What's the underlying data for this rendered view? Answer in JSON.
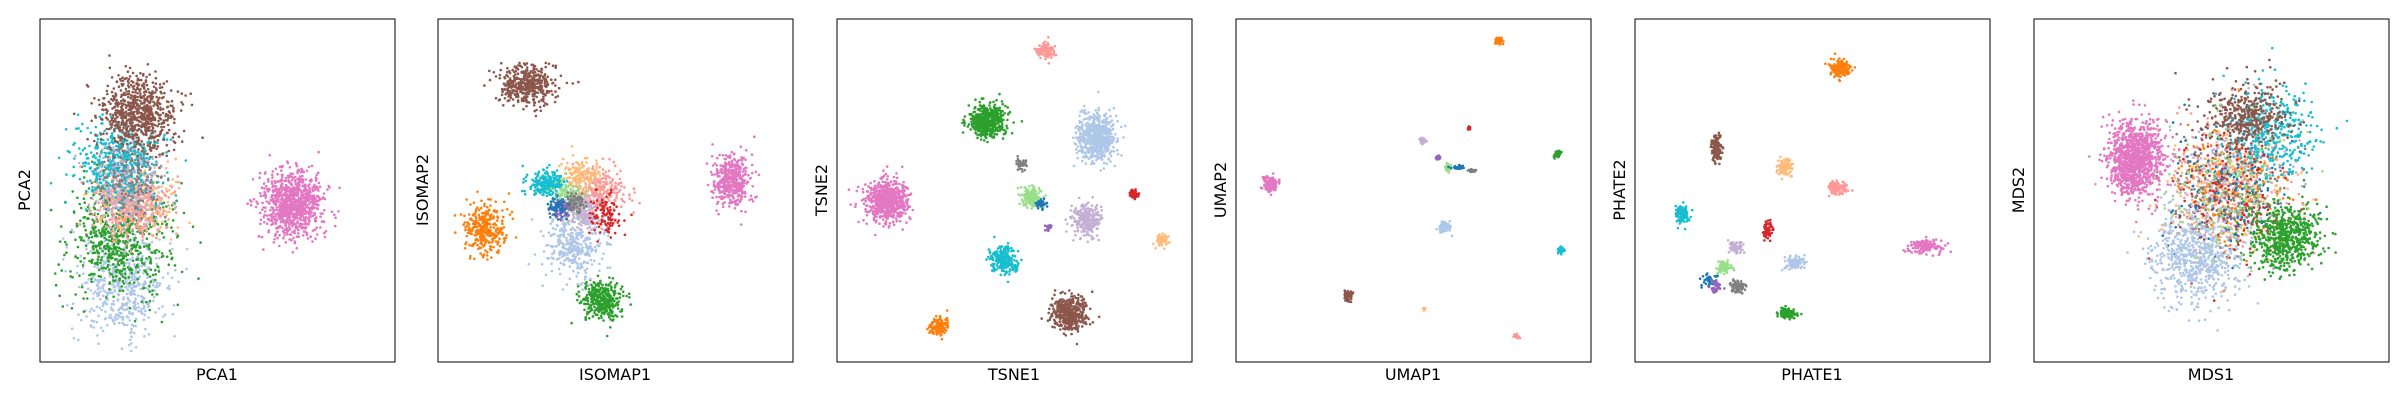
{
  "colors": {
    "blue_light": "#aec7e8",
    "orange": "#ff7f0e",
    "orange_light": "#ffbb78",
    "green": "#2ca02c",
    "green_light": "#98df8a",
    "red": "#d62728",
    "red_light": "#ff9896",
    "purple": "#9467bd",
    "purple_light": "#c5b0d5",
    "brown": "#8c564b",
    "pink": "#e377c2",
    "gray": "#7f7f7f",
    "cyan": "#17becf",
    "blue": "#1f77b4"
  },
  "chart_data": [
    {
      "type": "scatter",
      "xlabel": "PCA1",
      "ylabel": "PCA2",
      "grid": false,
      "ticks": false,
      "clusters": [
        {
          "color": "blue_light",
          "center": [
            0.22,
            0.22
          ],
          "spread": [
            0.13,
            0.16
          ],
          "n": 520
        },
        {
          "color": "green",
          "center": [
            0.21,
            0.35
          ],
          "spread": [
            0.15,
            0.17
          ],
          "n": 620
        },
        {
          "color": "orange_light",
          "center": [
            0.26,
            0.47
          ],
          "spread": [
            0.12,
            0.11
          ],
          "n": 380
        },
        {
          "color": "red_light",
          "center": [
            0.25,
            0.46
          ],
          "spread": [
            0.11,
            0.1
          ],
          "n": 300
        },
        {
          "color": "cyan",
          "center": [
            0.22,
            0.58
          ],
          "spread": [
            0.12,
            0.12
          ],
          "n": 520
        },
        {
          "color": "brown",
          "center": [
            0.27,
            0.73
          ],
          "spread": [
            0.11,
            0.11
          ],
          "n": 720
        },
        {
          "color": "purple_light",
          "center": [
            0.24,
            0.5
          ],
          "spread": [
            0.11,
            0.14
          ],
          "n": 200
        },
        {
          "color": "gray",
          "center": [
            0.24,
            0.52
          ],
          "spread": [
            0.1,
            0.12
          ],
          "n": 160
        },
        {
          "color": "pink",
          "center": [
            0.72,
            0.46
          ],
          "spread": [
            0.09,
            0.1
          ],
          "n": 900
        }
      ]
    },
    {
      "type": "scatter",
      "xlabel": "ISOMAP1",
      "ylabel": "ISOMAP2",
      "grid": false,
      "ticks": false,
      "clusters": [
        {
          "color": "brown",
          "center": [
            0.24,
            0.82
          ],
          "spread": [
            0.08,
            0.06
          ],
          "n": 420
        },
        {
          "color": "pink",
          "center": [
            0.84,
            0.53
          ],
          "spread": [
            0.05,
            0.08
          ],
          "n": 420
        },
        {
          "color": "orange",
          "center": [
            0.12,
            0.38
          ],
          "spread": [
            0.06,
            0.08
          ],
          "n": 300
        },
        {
          "color": "green",
          "center": [
            0.46,
            0.17
          ],
          "spread": [
            0.06,
            0.06
          ],
          "n": 360
        },
        {
          "color": "blue_light",
          "center": [
            0.38,
            0.33
          ],
          "spread": [
            0.08,
            0.09
          ],
          "n": 320
        },
        {
          "color": "red_light",
          "center": [
            0.45,
            0.5
          ],
          "spread": [
            0.08,
            0.08
          ],
          "n": 260
        },
        {
          "color": "cyan",
          "center": [
            0.3,
            0.52
          ],
          "spread": [
            0.05,
            0.04
          ],
          "n": 220
        },
        {
          "color": "green_light",
          "center": [
            0.37,
            0.48
          ],
          "spread": [
            0.05,
            0.05
          ],
          "n": 160
        },
        {
          "color": "purple_light",
          "center": [
            0.41,
            0.44
          ],
          "spread": [
            0.05,
            0.06
          ],
          "n": 160
        },
        {
          "color": "orange_light",
          "center": [
            0.4,
            0.55
          ],
          "spread": [
            0.06,
            0.05
          ],
          "n": 140
        },
        {
          "color": "red",
          "center": [
            0.47,
            0.42
          ],
          "spread": [
            0.05,
            0.07
          ],
          "n": 100
        },
        {
          "color": "gray",
          "center": [
            0.38,
            0.46
          ],
          "spread": [
            0.03,
            0.03
          ],
          "n": 80
        },
        {
          "color": "purple",
          "center": [
            0.34,
            0.44
          ],
          "spread": [
            0.03,
            0.03
          ],
          "n": 60
        },
        {
          "color": "blue",
          "center": [
            0.33,
            0.45
          ],
          "spread": [
            0.03,
            0.03
          ],
          "n": 60
        }
      ]
    },
    {
      "type": "scatter",
      "xlabel": "TSNE1",
      "ylabel": "TSNE2",
      "grid": false,
      "ticks": false,
      "clusters": [
        {
          "color": "pink",
          "center": [
            0.13,
            0.47
          ],
          "spread": [
            0.06,
            0.06
          ],
          "n": 700
        },
        {
          "color": "green",
          "center": [
            0.42,
            0.71
          ],
          "spread": [
            0.05,
            0.05
          ],
          "n": 500
        },
        {
          "color": "blue_light",
          "center": [
            0.74,
            0.66
          ],
          "spread": [
            0.06,
            0.07
          ],
          "n": 600
        },
        {
          "color": "red_light",
          "center": [
            0.59,
            0.92
          ],
          "spread": [
            0.025,
            0.025
          ],
          "n": 110
        },
        {
          "color": "cyan",
          "center": [
            0.47,
            0.29
          ],
          "spread": [
            0.04,
            0.04
          ],
          "n": 260
        },
        {
          "color": "brown",
          "center": [
            0.66,
            0.13
          ],
          "spread": [
            0.05,
            0.05
          ],
          "n": 420
        },
        {
          "color": "orange",
          "center": [
            0.28,
            0.09
          ],
          "spread": [
            0.03,
            0.03
          ],
          "n": 120
        },
        {
          "color": "purple_light",
          "center": [
            0.71,
            0.41
          ],
          "spread": [
            0.04,
            0.05
          ],
          "n": 260
        },
        {
          "color": "green_light",
          "center": [
            0.55,
            0.48
          ],
          "spread": [
            0.03,
            0.03
          ],
          "n": 160
        },
        {
          "color": "gray",
          "center": [
            0.52,
            0.58
          ],
          "spread": [
            0.015,
            0.015
          ],
          "n": 40
        },
        {
          "color": "blue",
          "center": [
            0.58,
            0.46
          ],
          "spread": [
            0.015,
            0.015
          ],
          "n": 40
        },
        {
          "color": "red",
          "center": [
            0.85,
            0.49
          ],
          "spread": [
            0.015,
            0.015
          ],
          "n": 40
        },
        {
          "color": "orange_light",
          "center": [
            0.93,
            0.35
          ],
          "spread": [
            0.02,
            0.02
          ],
          "n": 60
        },
        {
          "color": "purple",
          "center": [
            0.6,
            0.39
          ],
          "spread": [
            0.01,
            0.01
          ],
          "n": 20
        }
      ]
    },
    {
      "type": "scatter",
      "xlabel": "UMAP1",
      "ylabel": "UMAP2",
      "grid": false,
      "ticks": false,
      "clusters": [
        {
          "color": "pink",
          "center": [
            0.08,
            0.52
          ],
          "spread": [
            0.02,
            0.02
          ],
          "n": 140
        },
        {
          "color": "orange",
          "center": [
            0.75,
            0.95
          ],
          "spread": [
            0.01,
            0.01
          ],
          "n": 60
        },
        {
          "color": "green",
          "center": [
            0.92,
            0.61
          ],
          "spread": [
            0.01,
            0.01
          ],
          "n": 70
        },
        {
          "color": "cyan",
          "center": [
            0.93,
            0.32
          ],
          "spread": [
            0.01,
            0.01
          ],
          "n": 60
        },
        {
          "color": "blue_light",
          "center": [
            0.59,
            0.39
          ],
          "spread": [
            0.015,
            0.015
          ],
          "n": 80
        },
        {
          "color": "brown",
          "center": [
            0.31,
            0.18
          ],
          "spread": [
            0.015,
            0.015
          ],
          "n": 60
        },
        {
          "color": "red_light",
          "center": [
            0.8,
            0.06
          ],
          "spread": [
            0.008,
            0.008
          ],
          "n": 20
        },
        {
          "color": "orange_light",
          "center": [
            0.53,
            0.14
          ],
          "spread": [
            0.005,
            0.005
          ],
          "n": 8
        },
        {
          "color": "red",
          "center": [
            0.66,
            0.69
          ],
          "spread": [
            0.005,
            0.005
          ],
          "n": 8
        },
        {
          "color": "purple_light",
          "center": [
            0.53,
            0.65
          ],
          "spread": [
            0.01,
            0.01
          ],
          "n": 40
        },
        {
          "color": "green_light",
          "center": [
            0.6,
            0.57
          ],
          "spread": [
            0.01,
            0.01
          ],
          "n": 40
        },
        {
          "color": "blue",
          "center": [
            0.63,
            0.57
          ],
          "spread": [
            0.02,
            0.006
          ],
          "n": 30
        },
        {
          "color": "gray",
          "center": [
            0.67,
            0.56
          ],
          "spread": [
            0.01,
            0.006
          ],
          "n": 20
        },
        {
          "color": "purple",
          "center": [
            0.57,
            0.6
          ],
          "spread": [
            0.008,
            0.008
          ],
          "n": 15
        }
      ]
    },
    {
      "type": "scatter",
      "xlabel": "PHATE1",
      "ylabel": "PHATE2",
      "grid": false,
      "ticks": false,
      "clusters": [
        {
          "color": "orange",
          "center": [
            0.58,
            0.87
          ],
          "spread": [
            0.03,
            0.025
          ],
          "n": 160
        },
        {
          "color": "brown",
          "center": [
            0.22,
            0.63
          ],
          "spread": [
            0.015,
            0.04
          ],
          "n": 120
        },
        {
          "color": "orange_light",
          "center": [
            0.42,
            0.57
          ],
          "spread": [
            0.02,
            0.025
          ],
          "n": 100
        },
        {
          "color": "red_light",
          "center": [
            0.57,
            0.51
          ],
          "spread": [
            0.03,
            0.02
          ],
          "n": 120
        },
        {
          "color": "cyan",
          "center": [
            0.12,
            0.43
          ],
          "spread": [
            0.02,
            0.03
          ],
          "n": 110
        },
        {
          "color": "pink",
          "center": [
            0.83,
            0.33
          ],
          "spread": [
            0.05,
            0.02
          ],
          "n": 150
        },
        {
          "color": "red",
          "center": [
            0.37,
            0.38
          ],
          "spread": [
            0.015,
            0.03
          ],
          "n": 60
        },
        {
          "color": "purple_light",
          "center": [
            0.28,
            0.33
          ],
          "spread": [
            0.02,
            0.02
          ],
          "n": 60
        },
        {
          "color": "blue_light",
          "center": [
            0.45,
            0.28
          ],
          "spread": [
            0.03,
            0.02
          ],
          "n": 100
        },
        {
          "color": "green_light",
          "center": [
            0.24,
            0.27
          ],
          "spread": [
            0.02,
            0.02
          ],
          "n": 70
        },
        {
          "color": "blue",
          "center": [
            0.2,
            0.23
          ],
          "spread": [
            0.02,
            0.02
          ],
          "n": 40
        },
        {
          "color": "purple",
          "center": [
            0.22,
            0.21
          ],
          "spread": [
            0.02,
            0.02
          ],
          "n": 40
        },
        {
          "color": "gray",
          "center": [
            0.28,
            0.21
          ],
          "spread": [
            0.025,
            0.02
          ],
          "n": 60
        },
        {
          "color": "green",
          "center": [
            0.43,
            0.13
          ],
          "spread": [
            0.025,
            0.015
          ],
          "n": 110
        }
      ]
    },
    {
      "type": "scatter",
      "xlabel": "MDS1",
      "ylabel": "MDS2",
      "grid": false,
      "ticks": false,
      "clusters": [
        {
          "color": "red_light",
          "center": [
            0.55,
            0.52
          ],
          "spread": [
            0.19,
            0.2
          ],
          "n": 260
        },
        {
          "color": "orange_light",
          "center": [
            0.55,
            0.5
          ],
          "spread": [
            0.19,
            0.2
          ],
          "n": 240
        },
        {
          "color": "orange",
          "center": [
            0.56,
            0.52
          ],
          "spread": [
            0.18,
            0.19
          ],
          "n": 220
        },
        {
          "color": "purple_light",
          "center": [
            0.55,
            0.5
          ],
          "spread": [
            0.18,
            0.2
          ],
          "n": 220
        },
        {
          "color": "gray",
          "center": [
            0.55,
            0.5
          ],
          "spread": [
            0.17,
            0.19
          ],
          "n": 200
        },
        {
          "color": "red",
          "center": [
            0.55,
            0.5
          ],
          "spread": [
            0.18,
            0.19
          ],
          "n": 180
        },
        {
          "color": "blue",
          "center": [
            0.55,
            0.5
          ],
          "spread": [
            0.18,
            0.19
          ],
          "n": 160
        },
        {
          "color": "cyan",
          "center": [
            0.68,
            0.68
          ],
          "spread": [
            0.13,
            0.13
          ],
          "n": 380
        },
        {
          "color": "brown",
          "center": [
            0.6,
            0.73
          ],
          "spread": [
            0.12,
            0.1
          ],
          "n": 380
        },
        {
          "color": "blue_light",
          "center": [
            0.45,
            0.3
          ],
          "spread": [
            0.13,
            0.14
          ],
          "n": 620
        },
        {
          "color": "green",
          "center": [
            0.72,
            0.36
          ],
          "spread": [
            0.1,
            0.1
          ],
          "n": 620
        },
        {
          "color": "green_light",
          "center": [
            0.55,
            0.5
          ],
          "spread": [
            0.18,
            0.2
          ],
          "n": 160
        },
        {
          "color": "pink",
          "center": [
            0.28,
            0.6
          ],
          "spread": [
            0.08,
            0.11
          ],
          "n": 1100
        }
      ]
    }
  ]
}
